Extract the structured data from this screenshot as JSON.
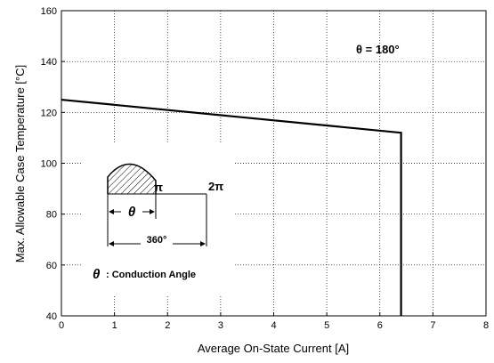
{
  "chart_data": {
    "type": "line",
    "xlabel": "Average On-State Current [A]",
    "ylabel": "Max. Allowable Case Temperature [°C]",
    "xlim": [
      0,
      8
    ],
    "ylim": [
      40,
      160
    ],
    "x_ticks": [
      "0",
      "1",
      "2",
      "3",
      "4",
      "5",
      "6",
      "7",
      "8"
    ],
    "y_ticks": [
      "40",
      "60",
      "80",
      "100",
      "120",
      "140",
      "160"
    ],
    "grid": true,
    "series": [
      {
        "x": [
          0,
          6.4,
          6.4
        ],
        "y": [
          125,
          112,
          40
        ]
      }
    ],
    "annotation": {
      "theta_label": "θ = 180°"
    },
    "inset": {
      "pi_label": "π",
      "two_pi_label": "2π",
      "theta_symbol": "θ",
      "angle_label": "360°",
      "caption_symbol": "θ",
      "caption_text": ": Conduction Angle"
    }
  }
}
